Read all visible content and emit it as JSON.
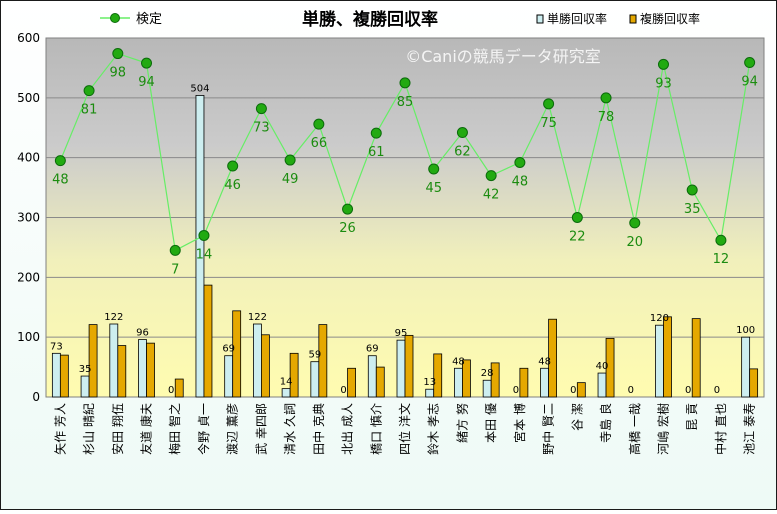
{
  "chart_data": {
    "type": "bar",
    "title": "単勝、複勝回収率",
    "watermark": "©Caniの競馬データ研究室",
    "ylim": [
      0,
      600
    ],
    "yticks": [
      0,
      100,
      200,
      300,
      400,
      500,
      600
    ],
    "grid": true,
    "legend_position": "top",
    "categories": [
      "矢作 芳人",
      "杉山 晴紀",
      "安田 翔伍",
      "友道 康夫",
      "梅田 智之",
      "今野 貞一",
      "渡辺 薫彦",
      "武 幸四郎",
      "清水 久詞",
      "田中 克典",
      "北出 成人",
      "橋口 慎介",
      "四位 洋文",
      "鈴木 孝志",
      "緒方 努",
      "本田 優",
      "宮本 博",
      "野中 賢二",
      "谷 潔",
      "寺島 良",
      "高橋 一哉",
      "河嶋 宏樹",
      "昆 貢",
      "中村 直也",
      "池江 泰寿"
    ],
    "series": [
      {
        "name": "単勝回収率",
        "kind": "bar",
        "color": "#cdeef0",
        "values": [
          73,
          35,
          122,
          96,
          0,
          504,
          69,
          122,
          14,
          59,
          0,
          69,
          95,
          13,
          48,
          28,
          0,
          48,
          0,
          40,
          0,
          120,
          0,
          0,
          100
        ]
      },
      {
        "name": "複勝回収率",
        "kind": "bar",
        "color": "#e5a800",
        "values": [
          70,
          121,
          86,
          90,
          30,
          187,
          144,
          104,
          73,
          121,
          48,
          50,
          103,
          72,
          62,
          57,
          48,
          130,
          24,
          98,
          0,
          134,
          131,
          0,
          47
        ]
      },
      {
        "name": "検定",
        "kind": "line",
        "color": "#22aa11",
        "values": [
          395,
          512,
          574,
          558,
          245,
          270,
          386,
          482,
          396,
          456,
          314,
          441,
          525,
          381,
          442,
          370,
          392,
          490,
          300,
          500,
          291,
          556,
          346,
          262,
          559
        ],
        "labels": [
          48,
          81,
          98,
          94,
          7,
          14,
          46,
          73,
          49,
          66,
          26,
          61,
          85,
          45,
          62,
          42,
          48,
          75,
          22,
          78,
          20,
          93,
          35,
          12,
          94
        ]
      }
    ]
  }
}
